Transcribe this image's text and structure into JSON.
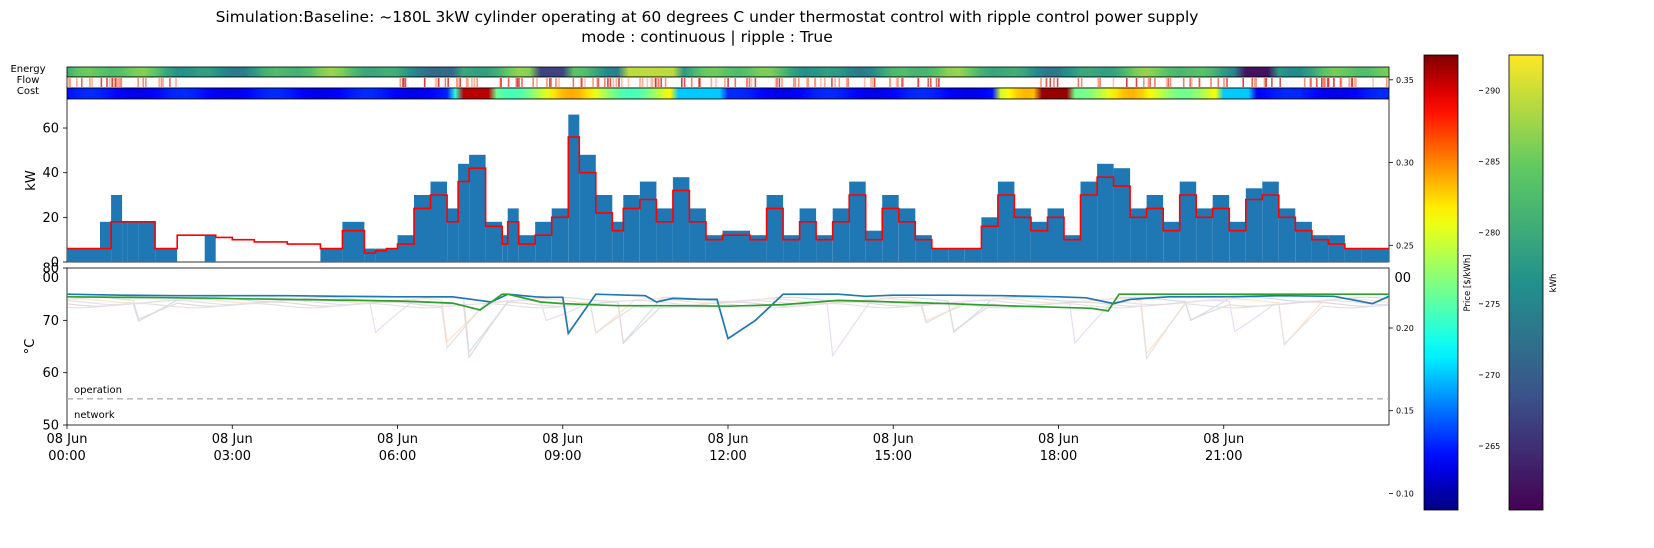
{
  "title": {
    "line1": "Simulation:Baseline: ~180L 3kW cylinder operating at 60 degrees C under thermostat control with ripple control power supply",
    "line2": "mode : continuous | ripple : True"
  },
  "strip_labels": [
    "Energy",
    "Flow",
    "Cost"
  ],
  "colors": {
    "bars": "#1f77b4",
    "line": "#ff0000",
    "temp_a": "#1f77b4",
    "temp_b": "#2ca02c",
    "dashed": "#b0b0b0"
  },
  "chart_data": [
    {
      "type": "bar",
      "ylabel": "kW",
      "ylim": [
        0,
        73
      ],
      "yticks": [
        "0",
        "20",
        "40",
        "60"
      ],
      "overlay_label": "00",
      "x_hours": [
        0,
        0.4,
        0.6,
        0.8,
        1.0,
        1.1,
        1.3,
        1.6,
        2.0,
        2.5,
        2.7,
        3.0,
        3.4,
        4.0,
        4.6,
        5.0,
        5.4,
        5.6,
        5.8,
        6.0,
        6.3,
        6.6,
        6.9,
        7.1,
        7.3,
        7.6,
        7.9,
        8.0,
        8.2,
        8.5,
        8.8,
        9.1,
        9.3,
        9.6,
        9.9,
        10.1,
        10.4,
        10.7,
        11.0,
        11.3,
        11.6,
        11.9,
        12.1,
        12.4,
        12.7,
        13.0,
        13.3,
        13.6,
        13.9,
        14.2,
        14.5,
        14.8,
        15.1,
        15.4,
        15.7,
        16.0,
        16.3,
        16.6,
        16.9,
        17.2,
        17.5,
        17.8,
        18.1,
        18.4,
        18.7,
        19.0,
        19.3,
        19.6,
        19.9,
        20.2,
        20.5,
        20.8,
        21.1,
        21.4,
        21.7,
        22.0,
        22.3,
        22.6,
        22.9,
        23.2,
        23.5,
        23.9
      ],
      "bar_kw": [
        6,
        6,
        18,
        30,
        18,
        18,
        18,
        6,
        0,
        12,
        0,
        0,
        0,
        0,
        6,
        18,
        6,
        6,
        6,
        12,
        30,
        36,
        24,
        44,
        48,
        18,
        12,
        24,
        12,
        18,
        24,
        66,
        48,
        30,
        18,
        30,
        36,
        24,
        38,
        24,
        12,
        14,
        14,
        12,
        30,
        12,
        24,
        12,
        24,
        36,
        14,
        30,
        24,
        12,
        6,
        6,
        6,
        20,
        36,
        24,
        18,
        24,
        12,
        36,
        44,
        42,
        24,
        30,
        18,
        36,
        24,
        30,
        18,
        33,
        36,
        24,
        18,
        12,
        12,
        6,
        6,
        6
      ],
      "line_kw": [
        6,
        6,
        6,
        18,
        18,
        18,
        18,
        6,
        12,
        12,
        11,
        10,
        9,
        8,
        6,
        14,
        4,
        5,
        6,
        8,
        24,
        30,
        18,
        36,
        42,
        16,
        8,
        18,
        8,
        12,
        20,
        56,
        40,
        22,
        14,
        24,
        28,
        18,
        32,
        18,
        10,
        12,
        12,
        10,
        24,
        10,
        18,
        10,
        18,
        30,
        10,
        24,
        18,
        10,
        6,
        6,
        6,
        16,
        30,
        20,
        14,
        20,
        10,
        30,
        38,
        34,
        20,
        24,
        14,
        30,
        20,
        24,
        14,
        28,
        30,
        20,
        14,
        10,
        8,
        6,
        6,
        6
      ]
    },
    {
      "type": "line",
      "ylabel": "°C",
      "ylim": [
        50,
        80
      ],
      "yticks": [
        "50",
        "60",
        "70",
        "80"
      ],
      "overlay_label": "00",
      "xticks": [
        "08 Jun\n00:00",
        "08 Jun\n03:00",
        "08 Jun\n06:00",
        "08 Jun\n09:00",
        "08 Jun\n12:00",
        "08 Jun\n15:00",
        "08 Jun\n18:00",
        "08 Jun\n21:00"
      ],
      "xtick_hours": [
        0,
        3,
        6,
        9,
        12,
        15,
        18,
        21
      ],
      "x_range_hours": [
        0,
        24
      ],
      "threshold": 55,
      "annotations": {
        "above": "operation",
        "below": "network"
      },
      "series": [
        {
          "x": [
            0,
            1.0,
            2.0,
            3.0,
            4.0,
            5.0,
            6.0,
            7.0,
            7.7,
            8.0,
            8.5,
            8.7,
            9.0,
            9.1,
            9.4,
            9.6,
            10.5,
            10.7,
            11.0,
            11.5,
            11.8,
            12.0,
            12.5,
            13.0,
            14.0,
            14.5,
            15.0,
            16.0,
            17.0,
            18.0,
            18.5,
            19.0,
            19.3,
            20.0,
            21.0,
            22.0,
            23.0,
            23.7,
            24.0
          ],
          "y": [
            75,
            74.8,
            74.7,
            74.7,
            74.7,
            74.6,
            74.5,
            74.5,
            73.5,
            75,
            74.5,
            74.4,
            74.4,
            67.5,
            72,
            75,
            74.7,
            73.5,
            74.2,
            74,
            74,
            66.5,
            70,
            75,
            75,
            74.6,
            74.8,
            74.8,
            74.7,
            74.5,
            74.3,
            73.2,
            74,
            74.5,
            74.5,
            74.7,
            74.6,
            73.2,
            74.6
          ]
        },
        {
          "x": [
            0,
            2.0,
            4.0,
            6.0,
            6.5,
            7.0,
            7.5,
            7.9,
            8.0,
            8.6,
            9.0,
            10.0,
            11.0,
            12.0,
            13.0,
            14.0,
            15.0,
            16.0,
            17.0,
            18.0,
            18.6,
            18.9,
            19.1,
            19.3,
            20.0,
            21.0,
            22.0,
            23.0,
            24.0
          ],
          "y": [
            74.5,
            74.3,
            74.0,
            73.7,
            73.5,
            73.3,
            72,
            75,
            75,
            73.5,
            73.2,
            72.8,
            72.8,
            72.7,
            73.0,
            73.8,
            73.5,
            73.2,
            72.8,
            72.5,
            72.3,
            71.8,
            75,
            75,
            75,
            75,
            75,
            75,
            75
          ]
        }
      ]
    },
    {
      "type": "heatmap",
      "name": "colorbar-price",
      "label": "Price [$/kWh]",
      "ticks": [
        "0.10",
        "0.15",
        "0.20",
        "0.25",
        "0.30",
        "0.35"
      ],
      "range": [
        0.09,
        0.365
      ],
      "colormap": "jet"
    },
    {
      "type": "heatmap",
      "name": "colorbar-energy",
      "label": "kWh",
      "ticks": [
        "265",
        "270",
        "275",
        "280",
        "285",
        "290"
      ],
      "range": [
        260.5,
        292.5
      ],
      "colormap": "viridis"
    }
  ]
}
